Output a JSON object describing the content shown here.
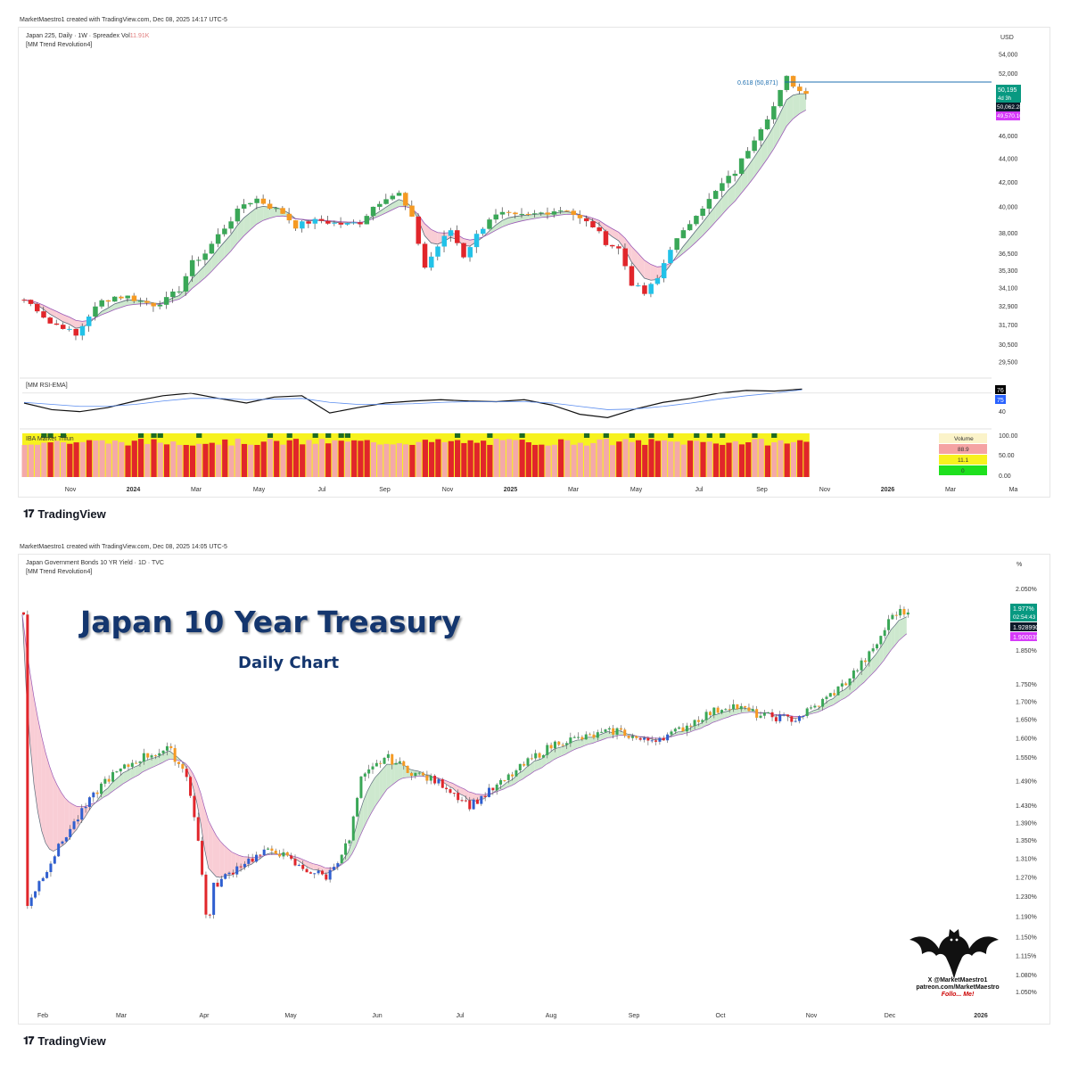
{
  "top": {
    "created": "MarketMaestro1 created with TradingView.com, Dec 08, 2025 14:17 UTC-5",
    "symbol_line": "Japan 225, Daily · 1W · Spreadex",
    "vol_label": "Vol",
    "vol_value": "11.91K",
    "indicator": "[MM Trend Revolution4]",
    "currency": "USD",
    "fib_label": "0.618 (50,871)",
    "price_tags": [
      "50,195",
      "4d 3h",
      "50,062.287847",
      "49,570.109081"
    ],
    "rsi_label": "[MM RSI-EMA]",
    "rsi_tags": [
      "76",
      "75"
    ],
    "rsi_axis": [
      "40"
    ],
    "vol_panel_label": "IBA Market Trifun",
    "vol_axis": [
      "100.00",
      "50.00",
      "0.00"
    ],
    "vol_legend": [
      "Volume",
      "88.9",
      "11.1",
      "0"
    ],
    "tradingview": "TradingView"
  },
  "bottom": {
    "created": "MarketMaestro1 created with TradingView.com, Dec 08, 2025 14:05 UTC-5",
    "symbol_line": "Japan Government Bonds 10 YR Yield · 1D · TVC",
    "indicator": "[MM Trend Revolution4]",
    "unit": "%",
    "title": "Japan 10 Year Treasury",
    "subtitle": "Daily Chart",
    "price_tags": [
      "1.977%",
      "02:54:43",
      "1.928990",
      "1.900039"
    ],
    "bat_lines": [
      "X @MarketMaestro1",
      "patreon.com/MarketMaestro",
      "Follo... Me!"
    ],
    "tradingview": "TradingView"
  },
  "chart_data": [
    {
      "type": "candlestick",
      "title": "Japan 225, Daily · 1W · Spreadex",
      "ylabel": "USD",
      "ylim": [
        29000,
        55000
      ],
      "y_ticks": [
        "54,000",
        "52,000",
        "50,000",
        "48,000",
        "46,000",
        "44,000",
        "42,000",
        "40,000",
        "38,000",
        "36,500",
        "35,300",
        "34,100",
        "32,900",
        "31,700",
        "30,500",
        "29,500"
      ],
      "x_ticks": [
        "Nov",
        "2024",
        "Mar",
        "May",
        "Jul",
        "Sep",
        "Nov",
        "2025",
        "Mar",
        "May",
        "Jul",
        "Sep",
        "Nov",
        "2026",
        "Mar",
        "Ma"
      ],
      "x_range_weeks": [
        0,
        121
      ],
      "close_series": [
        [
          0,
          33300
        ],
        [
          2,
          32700
        ],
        [
          4,
          31800
        ],
        [
          6,
          31600
        ],
        [
          8,
          31000
        ],
        [
          10,
          32300
        ],
        [
          12,
          33200
        ],
        [
          14,
          33500
        ],
        [
          16,
          33500
        ],
        [
          18,
          33200
        ],
        [
          20,
          33000
        ],
        [
          22,
          33300
        ],
        [
          24,
          34000
        ],
        [
          26,
          35800
        ],
        [
          28,
          36500
        ],
        [
          30,
          37800
        ],
        [
          32,
          39000
        ],
        [
          34,
          40200
        ],
        [
          36,
          40600
        ],
        [
          38,
          40000
        ],
        [
          40,
          39500
        ],
        [
          42,
          38500
        ],
        [
          44,
          38800
        ],
        [
          46,
          38900
        ],
        [
          48,
          38700
        ],
        [
          50,
          38600
        ],
        [
          52,
          38800
        ],
        [
          54,
          40000
        ],
        [
          56,
          40800
        ],
        [
          58,
          41000
        ],
        [
          60,
          39000
        ],
        [
          62,
          35500
        ],
        [
          64,
          37000
        ],
        [
          66,
          38200
        ],
        [
          68,
          36300
        ],
        [
          70,
          37800
        ],
        [
          72,
          39100
        ],
        [
          74,
          39400
        ],
        [
          76,
          39200
        ],
        [
          78,
          39300
        ],
        [
          80,
          39500
        ],
        [
          82,
          39700
        ],
        [
          84,
          39800
        ],
        [
          86,
          39000
        ],
        [
          88,
          38500
        ],
        [
          90,
          37300
        ],
        [
          92,
          36800
        ],
        [
          94,
          34400
        ],
        [
          96,
          33700
        ],
        [
          98,
          34700
        ],
        [
          100,
          36900
        ],
        [
          102,
          38000
        ],
        [
          104,
          39500
        ],
        [
          106,
          40500
        ],
        [
          108,
          41800
        ],
        [
          110,
          42800
        ],
        [
          112,
          44800
        ],
        [
          114,
          46800
        ],
        [
          116,
          48700
        ],
        [
          118,
          51500
        ],
        [
          120,
          50200
        ]
      ],
      "fib_level": 50871
    },
    {
      "type": "line",
      "title": "[MM RSI-EMA]",
      "ylim": [
        20,
        90
      ],
      "series": [
        {
          "name": "RSI",
          "values_every_4wk": [
            55,
            45,
            42,
            48,
            58,
            66,
            70,
            62,
            55,
            64,
            66,
            40,
            48,
            55,
            58,
            60,
            58,
            57,
            60,
            52,
            38,
            33,
            46,
            56,
            62,
            70,
            74,
            73,
            76
          ]
        },
        {
          "name": "EMA",
          "values_every_4wk": [
            56,
            53,
            50,
            50,
            53,
            58,
            62,
            62,
            60,
            61,
            62,
            56,
            53,
            53,
            54,
            56,
            57,
            57,
            57,
            55,
            50,
            45,
            46,
            50,
            55,
            61,
            66,
            70,
            75
          ]
        }
      ]
    },
    {
      "type": "line",
      "title": "Japan Government Bonds 10 YR Yield · 1D · TVC",
      "ylabel": "%",
      "ylim": [
        1.03,
        2.08
      ],
      "y_ticks": [
        "2.050%",
        "1.850%",
        "1.750%",
        "1.700%",
        "1.650%",
        "1.600%",
        "1.550%",
        "1.490%",
        "1.430%",
        "1.390%",
        "1.350%",
        "1.310%",
        "1.270%",
        "1.230%",
        "1.190%",
        "1.150%",
        "1.115%",
        "1.080%",
        "1.050%"
      ],
      "x_ticks": [
        "Feb",
        "Mar",
        "Apr",
        "May",
        "Jun",
        "Jul",
        "Aug",
        "Sep",
        "Oct",
        "Nov",
        "Dec",
        "2026"
      ],
      "x": [
        "Feb 1",
        "Feb 15",
        "Mar 1",
        "Mar 15",
        "Mar 25",
        "Apr 1",
        "Apr 5",
        "Apr 8",
        "Apr 10",
        "Apr 20",
        "May 1",
        "May 10",
        "May 20",
        "May 28",
        "Jun 1",
        "Jun 10",
        "Jun 20",
        "Jul 1",
        "Jul 10",
        "Jul 20",
        "Aug 1",
        "Aug 10",
        "Aug 20",
        "Sep 1",
        "Sep 10",
        "Sep 20",
        "Oct 1",
        "Oct 10",
        "Oct 20",
        "Nov 1",
        "Nov 10",
        "Nov 20",
        "Dec 1",
        "Dec 8"
      ],
      "values": [
        1.21,
        1.36,
        1.49,
        1.55,
        1.57,
        1.5,
        1.33,
        1.16,
        1.25,
        1.3,
        1.33,
        1.29,
        1.27,
        1.35,
        1.49,
        1.55,
        1.51,
        1.48,
        1.43,
        1.48,
        1.55,
        1.59,
        1.6,
        1.62,
        1.59,
        1.61,
        1.66,
        1.69,
        1.66,
        1.65,
        1.69,
        1.75,
        1.85,
        1.97
      ]
    }
  ]
}
